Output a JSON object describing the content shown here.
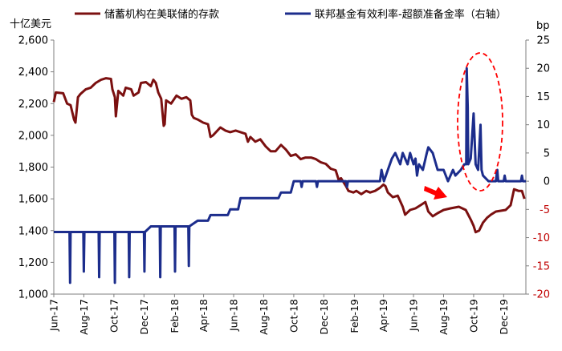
{
  "chart_data": {
    "type": "line",
    "left_axis_unit": "十亿美元",
    "right_axis_unit": "bp",
    "left_axis_color": "#000000",
    "right_axis_color": "#c00000",
    "left_ylim": [
      1000,
      2600
    ],
    "left_yticks": [
      "1,000",
      "1,200",
      "1,400",
      "1,600",
      "1,800",
      "2,000",
      "2,200",
      "2,400",
      "2,600"
    ],
    "right_ylim": [
      -20,
      25
    ],
    "right_yticks": [
      "-20",
      "-15",
      "-10",
      "-5",
      "0",
      "5",
      "10",
      "15",
      "20",
      "25"
    ],
    "x_start": "2017-06-01",
    "x_end": "2020-01-15",
    "x_tick_labels": [
      "Jun-17",
      "Aug-17",
      "Oct-17",
      "Dec-17",
      "Feb-18",
      "Apr-18",
      "Jun-18",
      "Aug-18",
      "Oct-18",
      "Dec-18",
      "Feb-19",
      "Apr-19",
      "Jun-19",
      "Aug-19",
      "Oct-19",
      "Dec-19"
    ],
    "x_tick_dates": [
      "2017-06-01",
      "2017-08-01",
      "2017-10-01",
      "2017-12-01",
      "2018-02-01",
      "2018-04-01",
      "2018-06-01",
      "2018-08-01",
      "2018-10-01",
      "2018-12-01",
      "2019-02-01",
      "2019-04-01",
      "2019-06-01",
      "2019-08-01",
      "2019-10-01",
      "2019-12-01"
    ],
    "grid": false,
    "legend_position": "top",
    "series": [
      {
        "name": "储蓄机构在美联储的存款",
        "axis": "left",
        "color": "#7b1010",
        "points": [
          [
            "2017-06-01",
            2210
          ],
          [
            "2017-06-05",
            2270
          ],
          [
            "2017-06-20",
            2265
          ],
          [
            "2017-06-28",
            2200
          ],
          [
            "2017-07-05",
            2190
          ],
          [
            "2017-07-12",
            2100
          ],
          [
            "2017-07-15",
            2080
          ],
          [
            "2017-07-20",
            2240
          ],
          [
            "2017-07-25",
            2260
          ],
          [
            "2017-08-05",
            2290
          ],
          [
            "2017-08-15",
            2300
          ],
          [
            "2017-08-25",
            2330
          ],
          [
            "2017-09-05",
            2350
          ],
          [
            "2017-09-15",
            2360
          ],
          [
            "2017-09-25",
            2355
          ],
          [
            "2017-09-28",
            2290
          ],
          [
            "2017-10-03",
            2240
          ],
          [
            "2017-10-05",
            2120
          ],
          [
            "2017-10-10",
            2280
          ],
          [
            "2017-10-20",
            2250
          ],
          [
            "2017-10-25",
            2300
          ],
          [
            "2017-11-05",
            2290
          ],
          [
            "2017-11-10",
            2250
          ],
          [
            "2017-11-20",
            2270
          ],
          [
            "2017-11-25",
            2330
          ],
          [
            "2017-12-05",
            2335
          ],
          [
            "2017-12-15",
            2310
          ],
          [
            "2017-12-20",
            2350
          ],
          [
            "2017-12-25",
            2330
          ],
          [
            "2017-12-30",
            2270
          ],
          [
            "2018-01-05",
            2230
          ],
          [
            "2018-01-10",
            2060
          ],
          [
            "2018-01-12",
            2070
          ],
          [
            "2018-01-15",
            2220
          ],
          [
            "2018-01-25",
            2200
          ],
          [
            "2018-02-05",
            2250
          ],
          [
            "2018-02-15",
            2230
          ],
          [
            "2018-02-25",
            2240
          ],
          [
            "2018-03-05",
            2220
          ],
          [
            "2018-03-08",
            2130
          ],
          [
            "2018-03-12",
            2110
          ],
          [
            "2018-03-20",
            2100
          ],
          [
            "2018-03-31",
            2080
          ],
          [
            "2018-04-10",
            2070
          ],
          [
            "2018-04-15",
            1990
          ],
          [
            "2018-04-20",
            2000
          ],
          [
            "2018-05-05",
            2050
          ],
          [
            "2018-05-15",
            2030
          ],
          [
            "2018-05-25",
            2020
          ],
          [
            "2018-06-05",
            2030
          ],
          [
            "2018-06-15",
            2020
          ],
          [
            "2018-06-25",
            2010
          ],
          [
            "2018-06-30",
            1960
          ],
          [
            "2018-07-05",
            1990
          ],
          [
            "2018-07-15",
            1960
          ],
          [
            "2018-07-25",
            1975
          ],
          [
            "2018-08-05",
            1930
          ],
          [
            "2018-08-15",
            1900
          ],
          [
            "2018-08-25",
            1900
          ],
          [
            "2018-09-05",
            1940
          ],
          [
            "2018-09-15",
            1910
          ],
          [
            "2018-09-25",
            1870
          ],
          [
            "2018-10-05",
            1880
          ],
          [
            "2018-10-15",
            1850
          ],
          [
            "2018-10-25",
            1860
          ],
          [
            "2018-11-05",
            1860
          ],
          [
            "2018-11-15",
            1850
          ],
          [
            "2018-11-25",
            1830
          ],
          [
            "2018-12-05",
            1820
          ],
          [
            "2018-12-15",
            1790
          ],
          [
            "2018-12-25",
            1780
          ],
          [
            "2018-12-31",
            1720
          ],
          [
            "2019-01-05",
            1730
          ],
          [
            "2019-01-15",
            1680
          ],
          [
            "2019-01-20",
            1650
          ],
          [
            "2019-01-30",
            1640
          ],
          [
            "2019-02-05",
            1650
          ],
          [
            "2019-02-15",
            1630
          ],
          [
            "2019-02-25",
            1650
          ],
          [
            "2019-03-05",
            1640
          ],
          [
            "2019-03-15",
            1650
          ],
          [
            "2019-03-25",
            1670
          ],
          [
            "2019-04-01",
            1690
          ],
          [
            "2019-04-05",
            1680
          ],
          [
            "2019-04-10",
            1640
          ],
          [
            "2019-04-20",
            1610
          ],
          [
            "2019-04-30",
            1620
          ],
          [
            "2019-05-10",
            1550
          ],
          [
            "2019-05-15",
            1500
          ],
          [
            "2019-05-25",
            1530
          ],
          [
            "2019-06-05",
            1540
          ],
          [
            "2019-06-15",
            1560
          ],
          [
            "2019-06-25",
            1580
          ],
          [
            "2019-07-01",
            1520
          ],
          [
            "2019-07-10",
            1490
          ],
          [
            "2019-07-20",
            1510
          ],
          [
            "2019-08-01",
            1530
          ],
          [
            "2019-08-15",
            1540
          ],
          [
            "2019-09-01",
            1550
          ],
          [
            "2019-09-15",
            1530
          ],
          [
            "2019-09-25",
            1470
          ],
          [
            "2019-10-01",
            1430
          ],
          [
            "2019-10-05",
            1390
          ],
          [
            "2019-10-12",
            1400
          ],
          [
            "2019-10-20",
            1450
          ],
          [
            "2019-10-28",
            1480
          ],
          [
            "2019-11-05",
            1500
          ],
          [
            "2019-11-15",
            1520
          ],
          [
            "2019-11-25",
            1525
          ],
          [
            "2019-12-05",
            1530
          ],
          [
            "2019-12-15",
            1560
          ],
          [
            "2019-12-22",
            1660
          ],
          [
            "2019-12-31",
            1650
          ],
          [
            "2020-01-07",
            1650
          ],
          [
            "2020-01-12",
            1600
          ]
        ]
      },
      {
        "name": "联邦基金有效利率-超额准备金率（右轴）",
        "axis": "right",
        "color": "#1c2d8c",
        "points": [
          [
            "2017-06-01",
            -9
          ],
          [
            "2017-07-03",
            -9
          ],
          [
            "2017-07-04",
            -18
          ],
          [
            "2017-07-05",
            -9
          ],
          [
            "2017-07-31",
            -9
          ],
          [
            "2017-08-01",
            -16
          ],
          [
            "2017-08-02",
            -9
          ],
          [
            "2017-08-31",
            -9
          ],
          [
            "2017-09-01",
            -17
          ],
          [
            "2017-09-02",
            -9
          ],
          [
            "2017-10-02",
            -9
          ],
          [
            "2017-10-03",
            -18
          ],
          [
            "2017-10-04",
            -9
          ],
          [
            "2017-10-31",
            -9
          ],
          [
            "2017-11-01",
            -17
          ],
          [
            "2017-11-02",
            -9
          ],
          [
            "2017-12-01",
            -9
          ],
          [
            "2017-12-02",
            -16
          ],
          [
            "2017-12-03",
            -9
          ],
          [
            "2017-12-15",
            -8
          ],
          [
            "2018-01-02",
            -8
          ],
          [
            "2018-01-03",
            -17
          ],
          [
            "2018-01-04",
            -8
          ],
          [
            "2018-02-01",
            -8
          ],
          [
            "2018-02-02",
            -16
          ],
          [
            "2018-02-03",
            -8
          ],
          [
            "2018-03-01",
            -8
          ],
          [
            "2018-03-02",
            -15
          ],
          [
            "2018-03-03",
            -8
          ],
          [
            "2018-03-20",
            -7
          ],
          [
            "2018-04-10",
            -7
          ],
          [
            "2018-04-15",
            -6
          ],
          [
            "2018-05-20",
            -6
          ],
          [
            "2018-05-25",
            -5
          ],
          [
            "2018-06-10",
            -5
          ],
          [
            "2018-06-15",
            -3
          ],
          [
            "2018-08-31",
            -3
          ],
          [
            "2018-09-05",
            -2
          ],
          [
            "2018-09-25",
            -2
          ],
          [
            "2018-10-01",
            0
          ],
          [
            "2018-10-15",
            0
          ],
          [
            "2018-10-17",
            -1
          ],
          [
            "2018-10-19",
            0
          ],
          [
            "2018-11-15",
            0
          ],
          [
            "2018-11-17",
            -1
          ],
          [
            "2018-11-19",
            0
          ],
          [
            "2019-01-15",
            0
          ],
          [
            "2019-01-17",
            -1
          ],
          [
            "2019-01-19",
            0
          ],
          [
            "2019-03-25",
            0
          ],
          [
            "2019-03-28",
            2
          ],
          [
            "2019-04-02",
            0
          ],
          [
            "2019-04-10",
            2
          ],
          [
            "2019-04-18",
            4
          ],
          [
            "2019-04-25",
            5
          ],
          [
            "2019-05-05",
            3
          ],
          [
            "2019-05-10",
            5
          ],
          [
            "2019-05-20",
            3
          ],
          [
            "2019-05-25",
            5
          ],
          [
            "2019-06-01",
            3
          ],
          [
            "2019-06-05",
            4
          ],
          [
            "2019-06-08",
            1
          ],
          [
            "2019-06-12",
            3
          ],
          [
            "2019-06-20",
            2
          ],
          [
            "2019-06-28",
            5
          ],
          [
            "2019-07-01",
            6
          ],
          [
            "2019-07-10",
            5
          ],
          [
            "2019-07-20",
            2
          ],
          [
            "2019-08-01",
            2
          ],
          [
            "2019-08-10",
            0
          ],
          [
            "2019-08-20",
            2
          ],
          [
            "2019-08-25",
            1
          ],
          [
            "2019-09-05",
            2
          ],
          [
            "2019-09-12",
            3
          ],
          [
            "2019-09-16",
            3
          ],
          [
            "2019-09-17",
            20
          ],
          [
            "2019-09-19",
            13
          ],
          [
            "2019-09-20",
            3
          ],
          [
            "2019-09-25",
            4
          ],
          [
            "2019-10-01",
            12
          ],
          [
            "2019-10-05",
            3
          ],
          [
            "2019-10-10",
            2
          ],
          [
            "2019-10-15",
            10
          ],
          [
            "2019-10-17",
            2
          ],
          [
            "2019-10-20",
            1
          ],
          [
            "2019-10-31",
            0
          ],
          [
            "2019-11-15",
            0
          ],
          [
            "2019-11-18",
            2
          ],
          [
            "2019-11-20",
            0
          ],
          [
            "2019-12-01",
            0
          ],
          [
            "2019-12-03",
            1
          ],
          [
            "2019-12-05",
            0
          ],
          [
            "2020-01-05",
            0
          ],
          [
            "2020-01-07",
            1
          ],
          [
            "2020-01-09",
            0
          ],
          [
            "2020-01-15",
            0
          ]
        ]
      }
    ]
  }
}
